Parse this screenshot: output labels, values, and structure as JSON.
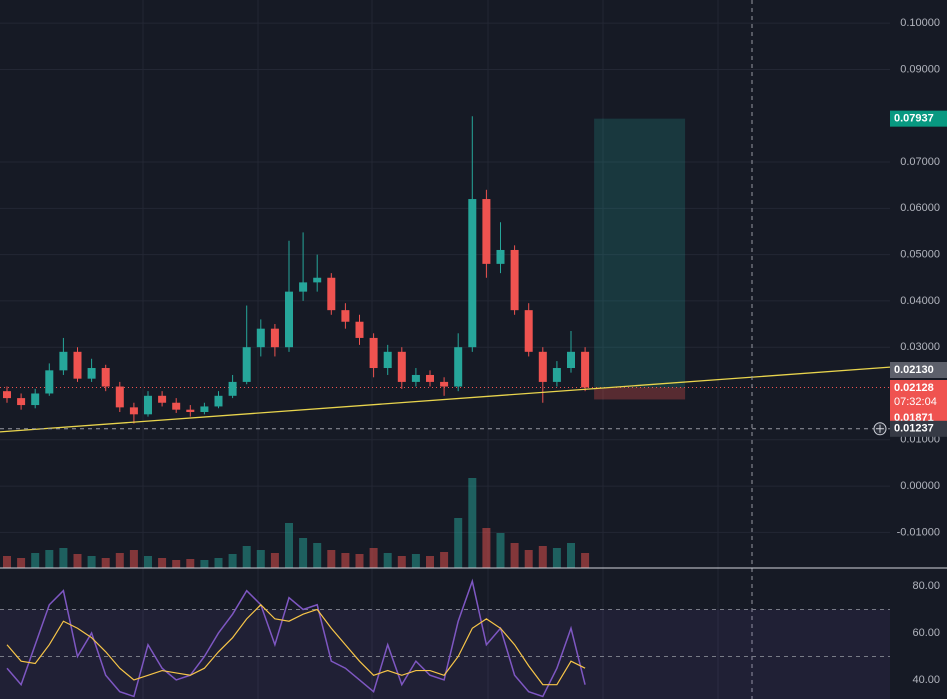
{
  "chart_data": {
    "type": "candlestick",
    "open": [
      0.0205,
      0.019,
      0.0175,
      0.02,
      0.025,
      0.029,
      0.0232,
      0.0255,
      0.0215,
      0.017,
      0.0155,
      0.0195,
      0.018,
      0.0165,
      0.016,
      0.0172,
      0.0195,
      0.0225,
      0.03,
      0.034,
      0.03,
      0.042,
      0.044,
      0.045,
      0.038,
      0.0355,
      0.032,
      0.0255,
      0.029,
      0.0225,
      0.024,
      0.0225,
      0.0215,
      0.03,
      0.062,
      0.048,
      0.051,
      0.038,
      0.029,
      0.0225,
      0.0255,
      0.029
    ],
    "high": [
      0.0215,
      0.02,
      0.021,
      0.0265,
      0.032,
      0.03,
      0.0275,
      0.0262,
      0.0225,
      0.018,
      0.0205,
      0.0205,
      0.019,
      0.0175,
      0.018,
      0.0205,
      0.024,
      0.039,
      0.036,
      0.035,
      0.053,
      0.0548,
      0.05,
      0.046,
      0.0395,
      0.037,
      0.033,
      0.0305,
      0.03,
      0.0255,
      0.025,
      0.0235,
      0.033,
      0.0799,
      0.064,
      0.057,
      0.052,
      0.0395,
      0.03,
      0.027,
      0.0335,
      0.03
    ],
    "low": [
      0.018,
      0.0165,
      0.0168,
      0.0195,
      0.024,
      0.0225,
      0.0225,
      0.0205,
      0.016,
      0.0135,
      0.015,
      0.0172,
      0.0158,
      0.015,
      0.0155,
      0.0168,
      0.019,
      0.022,
      0.028,
      0.028,
      0.029,
      0.04,
      0.042,
      0.037,
      0.034,
      0.0305,
      0.0235,
      0.024,
      0.021,
      0.0215,
      0.0215,
      0.0195,
      0.0205,
      0.029,
      0.045,
      0.046,
      0.037,
      0.028,
      0.018,
      0.0215,
      0.0245,
      0.0205
    ],
    "close": [
      0.019,
      0.0175,
      0.02,
      0.025,
      0.029,
      0.0232,
      0.0255,
      0.0215,
      0.017,
      0.0155,
      0.0195,
      0.018,
      0.0165,
      0.016,
      0.0172,
      0.0195,
      0.0225,
      0.03,
      0.034,
      0.03,
      0.042,
      0.044,
      0.045,
      0.038,
      0.0355,
      0.032,
      0.0255,
      0.029,
      0.0225,
      0.024,
      0.0225,
      0.0215,
      0.03,
      0.062,
      0.048,
      0.051,
      0.038,
      0.029,
      0.0225,
      0.0255,
      0.029,
      0.0213
    ],
    "colors": {
      "up": "#26a69a",
      "down": "#ef5350"
    },
    "ylim": [
      -0.0177,
      0.105
    ],
    "yticks": [
      {
        "value": 0.1,
        "label": "0.10000"
      },
      {
        "value": 0.09,
        "label": "0.09000"
      },
      {
        "value": 0.07,
        "label": "0.07000"
      },
      {
        "value": 0.06,
        "label": "0.06000"
      },
      {
        "value": 0.05,
        "label": "0.05000"
      },
      {
        "value": 0.04,
        "label": "0.04000"
      },
      {
        "value": 0.03,
        "label": "0.03000"
      },
      {
        "value": 0.01,
        "label": "0.01000"
      },
      {
        "value": 0,
        "label": "0.00000"
      },
      {
        "value": -0.01,
        "label": "-0.01000"
      }
    ],
    "grid": true,
    "volume": {
      "values": [
        12,
        10,
        15,
        18,
        20,
        14,
        12,
        10,
        15,
        18,
        12,
        10,
        8,
        9,
        8,
        10,
        14,
        22,
        18,
        15,
        45,
        30,
        25,
        18,
        15,
        14,
        20,
        15,
        12,
        14,
        12,
        16,
        50,
        90,
        40,
        35,
        25,
        18,
        22,
        20,
        25,
        15
      ],
      "ylim": [
        0,
        100
      ]
    },
    "trendline": {
      "values": [
        0.0117,
        0.0257
      ],
      "color": "#e8d44d"
    },
    "position": {
      "target": {
        "value": 0.07937,
        "label": "0.07937"
      },
      "entry": {
        "value": 0.02128,
        "label": "0.02128"
      },
      "stop": {
        "value": 0.01871,
        "label": "0.01871"
      }
    },
    "last_tag": {
      "value": 0.0213,
      "label": "0.02130"
    },
    "countdown": "07:32:04",
    "crosshair": {
      "value": 0.01237,
      "label": "0.01237"
    },
    "rsi": {
      "values": [
        45,
        38,
        55,
        72,
        78,
        50,
        60,
        42,
        35,
        33,
        55,
        45,
        40,
        42,
        50,
        60,
        68,
        78,
        72,
        55,
        75,
        70,
        72,
        48,
        45,
        40,
        35,
        55,
        38,
        48,
        42,
        40,
        65,
        82,
        55,
        62,
        42,
        35,
        33,
        45,
        62,
        38
      ],
      "ma": [
        55,
        48,
        47,
        55,
        65,
        62,
        58,
        52,
        45,
        40,
        42,
        44,
        43,
        42,
        45,
        52,
        58,
        66,
        72,
        66,
        65,
        68,
        70,
        62,
        55,
        48,
        42,
        44,
        42,
        44,
        44,
        42,
        50,
        62,
        66,
        62,
        55,
        46,
        38,
        38,
        48,
        45
      ],
      "color": "#7e57c2",
      "ma_color": "#f7c548",
      "ylim": [
        31.9,
        86.8
      ],
      "yticks": [
        {
          "value": 80,
          "label": "80.00"
        },
        {
          "value": 60,
          "label": "60.00"
        },
        {
          "value": 40,
          "label": "40.00"
        }
      ],
      "bands": [
        70,
        50
      ]
    }
  }
}
